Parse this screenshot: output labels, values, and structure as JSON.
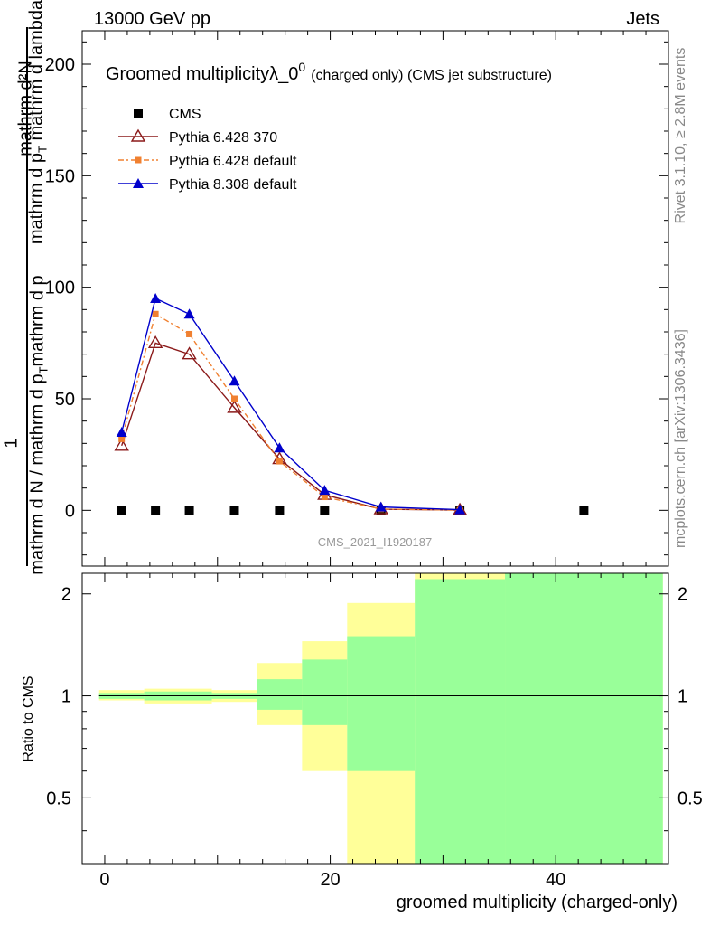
{
  "header": {
    "energy": "13000 GeV pp",
    "category": "Jets"
  },
  "side_labels": {
    "rivet": "Rivet 3.1.10, ≥ 2.8M events",
    "mcplots": "mcplots.cern.ch [arXiv:1306.3436]"
  },
  "x_axis_label": "groomed multiplicity (charged-only)",
  "chart_data": [
    {
      "type": "line",
      "title": "Groomed multiplicityλ_0",
      "title_sup": "0",
      "title_suffix": "(charged only) (CMS jet substructure)",
      "watermark": "CMS_2021_I1920187",
      "ylabel_numerator": "mathrm d²N",
      "ylabel_denominator": "mathrm d p_T mathrm d p_T mathrm d lambda",
      "ylabel_full": "1 / mathrm d N / mathrm d p_T mathrm d N",
      "xlim": [
        -2,
        50
      ],
      "ylim": [
        -25,
        215
      ],
      "yticks": [
        0,
        50,
        100,
        150,
        200
      ],
      "x": [
        1.5,
        4.5,
        7.5,
        11.5,
        15.5,
        19.5,
        24.5,
        31.5,
        42.5
      ],
      "series": [
        {
          "name": "CMS",
          "color": "#000000",
          "marker": "square",
          "x": [
            1.5,
            4.5,
            7.5,
            11.5,
            15.5,
            19.5,
            24.5,
            31.5,
            42.5
          ],
          "values": [
            0,
            0,
            0,
            0,
            0,
            0,
            0,
            0,
            0
          ]
        },
        {
          "name": "Pythia 6.428 370",
          "color": "#8b1a1a",
          "marker": "open-triangle",
          "dash": "",
          "x": [
            1.5,
            4.5,
            7.5,
            11.5,
            15.5,
            19.5,
            24.5,
            31.5
          ],
          "values": [
            29,
            75,
            70,
            46,
            23,
            7,
            0.5,
            0.1
          ]
        },
        {
          "name": "Pythia 6.428 default",
          "color": "#f08030",
          "marker": "small-square",
          "dash": "6,3,2,3",
          "x": [
            1.5,
            4.5,
            7.5,
            11.5,
            15.5,
            19.5,
            24.5,
            31.5
          ],
          "values": [
            32,
            88,
            79,
            50,
            22,
            6,
            0.6,
            0.1
          ]
        },
        {
          "name": "Pythia 8.308 default",
          "color": "#0000cc",
          "marker": "triangle",
          "dash": "",
          "x": [
            1.5,
            4.5,
            7.5,
            11.5,
            15.5,
            19.5,
            24.5,
            31.5
          ],
          "values": [
            35,
            95,
            88,
            58,
            28,
            9,
            1.5,
            0.3
          ]
        }
      ]
    },
    {
      "type": "area",
      "ylabel": "Ratio to CMS",
      "xlim": [
        -2,
        50
      ],
      "ylim": [
        0.32,
        2.3
      ],
      "yticks": [
        0.5,
        1,
        2
      ],
      "xticks": [
        0,
        20,
        40
      ],
      "reference_line": 1,
      "bands": [
        {
          "name": "yellow",
          "color": "#ffff99",
          "bins": [
            {
              "x0": -0.5,
              "x1": 3.5,
              "lo": 0.97,
              "hi": 1.04
            },
            {
              "x0": 3.5,
              "x1": 9.5,
              "lo": 0.95,
              "hi": 1.05
            },
            {
              "x0": 9.5,
              "x1": 13.5,
              "lo": 0.96,
              "hi": 1.04
            },
            {
              "x0": 13.5,
              "x1": 17.5,
              "lo": 0.82,
              "hi": 1.25
            },
            {
              "x0": 17.5,
              "x1": 21.5,
              "lo": 0.6,
              "hi": 1.45
            },
            {
              "x0": 21.5,
              "x1": 27.5,
              "lo": 0.32,
              "hi": 1.88
            },
            {
              "x0": 27.5,
              "x1": 35.5,
              "lo": 0.32,
              "hi": 2.3
            },
            {
              "x0": 35.5,
              "x1": 49.5,
              "lo": 0.32,
              "hi": 2.3
            }
          ]
        },
        {
          "name": "green",
          "color": "#99ff99",
          "bins": [
            {
              "x0": -0.5,
              "x1": 3.5,
              "lo": 0.98,
              "hi": 1.02
            },
            {
              "x0": 3.5,
              "x1": 9.5,
              "lo": 0.97,
              "hi": 1.03
            },
            {
              "x0": 9.5,
              "x1": 13.5,
              "lo": 0.98,
              "hi": 1.02
            },
            {
              "x0": 13.5,
              "x1": 17.5,
              "lo": 0.91,
              "hi": 1.12
            },
            {
              "x0": 17.5,
              "x1": 21.5,
              "lo": 0.82,
              "hi": 1.28
            },
            {
              "x0": 21.5,
              "x1": 27.5,
              "lo": 0.6,
              "hi": 1.5
            },
            {
              "x0": 27.5,
              "x1": 35.5,
              "lo": 0.32,
              "hi": 2.21
            },
            {
              "x0": 35.5,
              "x1": 49.5,
              "lo": 0.32,
              "hi": 2.3
            }
          ]
        }
      ]
    }
  ]
}
